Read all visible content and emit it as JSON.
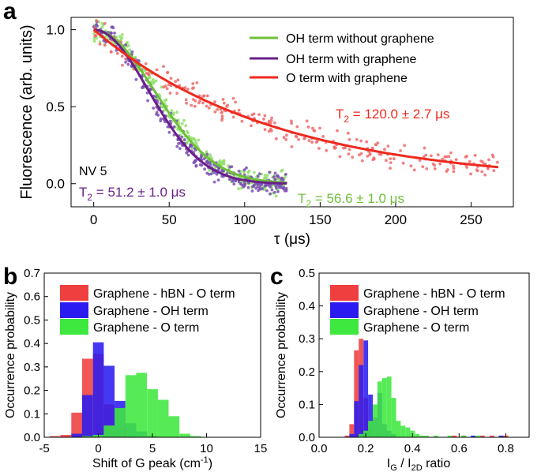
{
  "chart_data": [
    {
      "type": "scatter+line",
      "panel_label": "a",
      "xlabel": "τ (μs)",
      "ylabel": "Fluorescence (arb. units)",
      "xlim": [
        -15,
        278
      ],
      "ylim": [
        -0.15,
        1.08
      ],
      "xticks": [
        "0",
        "50",
        "100",
        "150",
        "200",
        "250"
      ],
      "yticks": [
        "0.0",
        "0.5",
        "1.0"
      ],
      "nv_label": "NV 5",
      "series": [
        {
          "name": "OH term without graphene",
          "color": "#6fbf3a",
          "point_color": "#8fe06a",
          "T2": 56.6,
          "tmax": 128,
          "decay_exponent": 2,
          "noise": 0.07
        },
        {
          "name": "OH term with graphene",
          "color": "#6a1f8a",
          "point_color": "#7b4fb5",
          "T2": 51.2,
          "tmax": 128,
          "decay_exponent": 2,
          "noise": 0.07
        },
        {
          "name": "O term with graphene",
          "color": "#ee2a1f",
          "point_color": "#ef6b6b",
          "T2": 120.0,
          "tmax": 268,
          "decay_exponent": 1,
          "noise": 0.08
        }
      ],
      "annotations": {
        "red_prefix": "T",
        "red_sub": "2",
        "red_value": " = 120.0 ± 2.7 μs",
        "purple_prefix": "T",
        "purple_sub": "2",
        "purple_value": " = 51.2 ± 1.0 μs",
        "green_prefix": "T",
        "green_sub": "2",
        "green_value": " = 56.6 ± 1.0 μs"
      }
    },
    {
      "type": "histogram",
      "panel_label": "b",
      "xlabel_main": "Shift of G peak (cm",
      "xlabel_sup": "-1",
      "xlabel_end": ")",
      "ylabel": "Occurrence probability",
      "xlim": [
        -5,
        15
      ],
      "ylim": [
        0,
        0.7
      ],
      "xticks": [
        "-5",
        "0",
        "5",
        "10",
        "15"
      ],
      "yticks": [
        "0.0",
        "0.1",
        "0.2",
        "0.3",
        "0.4",
        "0.5",
        "0.6",
        "0.7"
      ],
      "bin_width": 1,
      "series": [
        {
          "name": "Graphene - hBN - O term",
          "color": "#ef3f3f",
          "bins": [
            {
              "x": -4,
              "v": 0.005
            },
            {
              "x": -3,
              "v": 0.01
            },
            {
              "x": -2,
              "v": 0.105
            },
            {
              "x": -1,
              "v": 0.335
            },
            {
              "x": 0,
              "v": 0.355
            },
            {
              "x": 1,
              "v": 0.14
            },
            {
              "x": 2,
              "v": 0.04
            },
            {
              "x": 3,
              "v": 0.01
            }
          ]
        },
        {
          "name": "Graphene - OH term",
          "color": "#2b1cf0",
          "bins": [
            {
              "x": -2,
              "v": 0.015
            },
            {
              "x": -1,
              "v": 0.18
            },
            {
              "x": 0,
              "v": 0.405
            },
            {
              "x": 1,
              "v": 0.305
            },
            {
              "x": 2,
              "v": 0.155
            },
            {
              "x": 3,
              "v": 0.06
            },
            {
              "x": 4,
              "v": 0.025
            },
            {
              "x": 5,
              "v": 0.005
            }
          ]
        },
        {
          "name": "Graphene - O term",
          "color": "#3fe83f",
          "bins": [
            {
              "x": -1,
              "v": 0.005
            },
            {
              "x": 0,
              "v": 0.01
            },
            {
              "x": 1,
              "v": 0.05
            },
            {
              "x": 2,
              "v": 0.125
            },
            {
              "x": 3,
              "v": 0.265
            },
            {
              "x": 4,
              "v": 0.275
            },
            {
              "x": 5,
              "v": 0.205
            },
            {
              "x": 6,
              "v": 0.16
            },
            {
              "x": 7,
              "v": 0.09
            },
            {
              "x": 8,
              "v": 0.015
            },
            {
              "x": 9,
              "v": 0.005
            }
          ]
        }
      ]
    },
    {
      "type": "histogram",
      "panel_label": "c",
      "xlabel_main": "I",
      "xlabel_sub1": "G",
      "xlabel_mid": " / I",
      "xlabel_sub2": "2D",
      "xlabel_end": " ratio",
      "ylabel": "Occurrence probability",
      "xlim": [
        0.0,
        0.9
      ],
      "ylim": [
        0,
        0.5
      ],
      "xticks": [
        "0.0",
        "0.2",
        "0.4",
        "0.6",
        "0.8"
      ],
      "yticks": [
        "0.0",
        "0.1",
        "0.2",
        "0.3",
        "0.4",
        "0.5"
      ],
      "bin_width": 0.02,
      "series": [
        {
          "name": "Graphene - hBN - O term",
          "color": "#ef3f3f",
          "bins": [
            {
              "x": 0.12,
              "v": 0.005
            },
            {
              "x": 0.14,
              "v": 0.04
            },
            {
              "x": 0.16,
              "v": 0.265
            },
            {
              "x": 0.18,
              "v": 0.3
            },
            {
              "x": 0.2,
              "v": 0.12
            },
            {
              "x": 0.22,
              "v": 0.03
            },
            {
              "x": 0.24,
              "v": 0.01
            },
            {
              "x": 0.58,
              "v": 0.005
            },
            {
              "x": 0.62,
              "v": 0.005
            },
            {
              "x": 0.7,
              "v": 0.005
            },
            {
              "x": 0.74,
              "v": 0.005
            },
            {
              "x": 0.8,
              "v": 0.005
            }
          ]
        },
        {
          "name": "Graphene - OH term",
          "color": "#2b1cf0",
          "bins": [
            {
              "x": 0.14,
              "v": 0.01
            },
            {
              "x": 0.16,
              "v": 0.11
            },
            {
              "x": 0.18,
              "v": 0.22
            },
            {
              "x": 0.2,
              "v": 0.295
            },
            {
              "x": 0.22,
              "v": 0.13
            },
            {
              "x": 0.24,
              "v": 0.06
            },
            {
              "x": 0.26,
              "v": 0.135
            },
            {
              "x": 0.28,
              "v": 0.04
            },
            {
              "x": 0.3,
              "v": 0.02
            },
            {
              "x": 0.32,
              "v": 0.01
            },
            {
              "x": 0.66,
              "v": 0.005
            },
            {
              "x": 0.78,
              "v": 0.005
            }
          ]
        },
        {
          "name": "Graphene - O term",
          "color": "#3fe83f",
          "bins": [
            {
              "x": 0.18,
              "v": 0.01
            },
            {
              "x": 0.2,
              "v": 0.02
            },
            {
              "x": 0.22,
              "v": 0.05
            },
            {
              "x": 0.24,
              "v": 0.1
            },
            {
              "x": 0.26,
              "v": 0.17
            },
            {
              "x": 0.28,
              "v": 0.18
            },
            {
              "x": 0.3,
              "v": 0.185
            },
            {
              "x": 0.32,
              "v": 0.12
            },
            {
              "x": 0.34,
              "v": 0.05
            },
            {
              "x": 0.36,
              "v": 0.035
            },
            {
              "x": 0.38,
              "v": 0.03
            },
            {
              "x": 0.4,
              "v": 0.02
            },
            {
              "x": 0.42,
              "v": 0.01
            },
            {
              "x": 0.44,
              "v": 0.005
            },
            {
              "x": 0.46,
              "v": 0.005
            },
            {
              "x": 0.5,
              "v": 0.005
            },
            {
              "x": 0.56,
              "v": 0.005
            },
            {
              "x": 0.62,
              "v": 0.005
            },
            {
              "x": 0.68,
              "v": 0.005
            }
          ]
        }
      ]
    }
  ]
}
